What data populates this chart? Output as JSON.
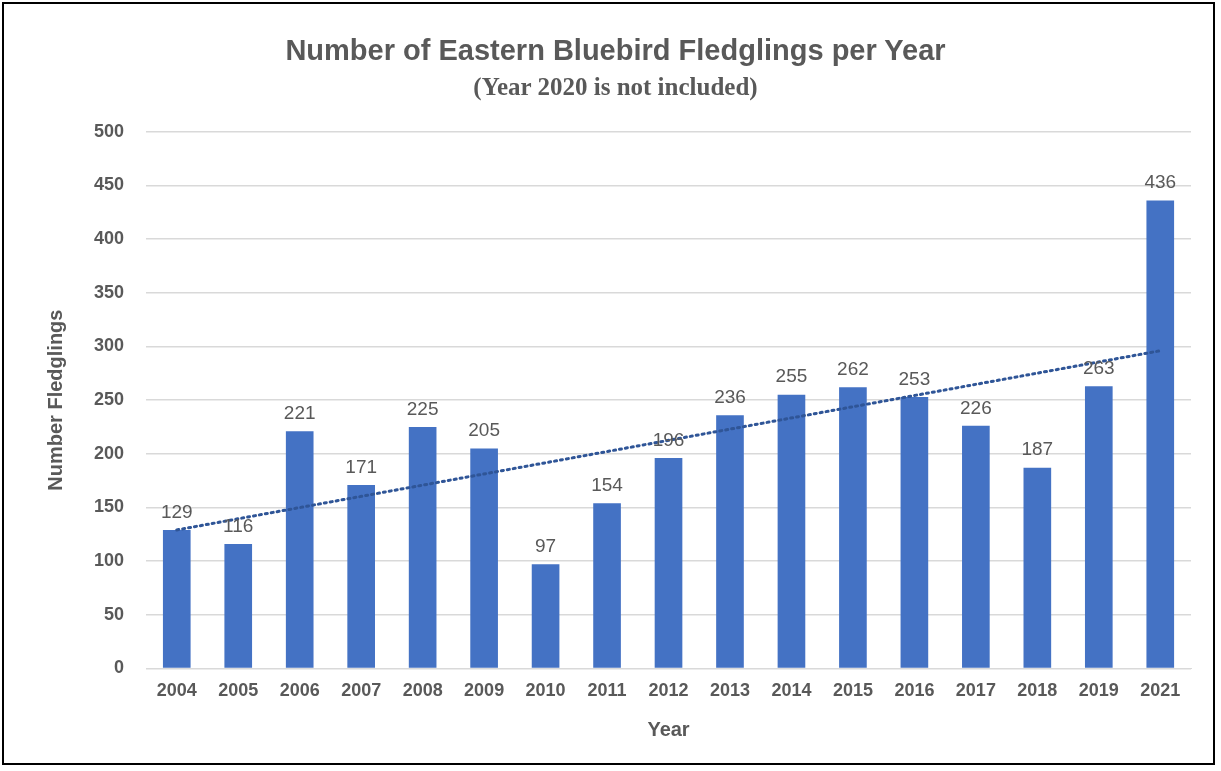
{
  "chart_data": {
    "type": "bar",
    "title": "Number of Eastern Bluebird Fledglings per Year",
    "subtitle": "(Year 2020 is not included)",
    "xlabel": "Year",
    "ylabel": "Number Fledglings",
    "categories": [
      "2004",
      "2005",
      "2006",
      "2007",
      "2008",
      "2009",
      "2010",
      "2011",
      "2012",
      "2013",
      "2014",
      "2015",
      "2016",
      "2017",
      "2018",
      "2019",
      "2021"
    ],
    "series": [
      {
        "color": "#4472c4",
        "values": [
          129,
          116,
          221,
          171,
          225,
          205,
          97,
          154,
          196,
          236,
          255,
          262,
          253,
          226,
          187,
          263,
          436
        ],
        "value_labels": [
          "129",
          "116",
          "221",
          "171",
          "225",
          "205",
          "97",
          "154",
          "196",
          "236",
          "255",
          "262",
          "253",
          "226",
          "187",
          "263",
          "436"
        ]
      },
      {
        "type": "line",
        "color": "#2f5597",
        "line_style": "dotted",
        "marker": "none",
        "values": [
          129,
          null,
          null,
          null,
          null,
          null,
          null,
          null,
          null,
          null,
          null,
          null,
          null,
          null,
          null,
          null,
          296
        ]
      }
    ],
    "ylim": [
      0,
      500
    ],
    "yticks": [
      0,
      50,
      100,
      150,
      200,
      250,
      300,
      350,
      400,
      450,
      500
    ],
    "grid": "y",
    "legend": false
  }
}
